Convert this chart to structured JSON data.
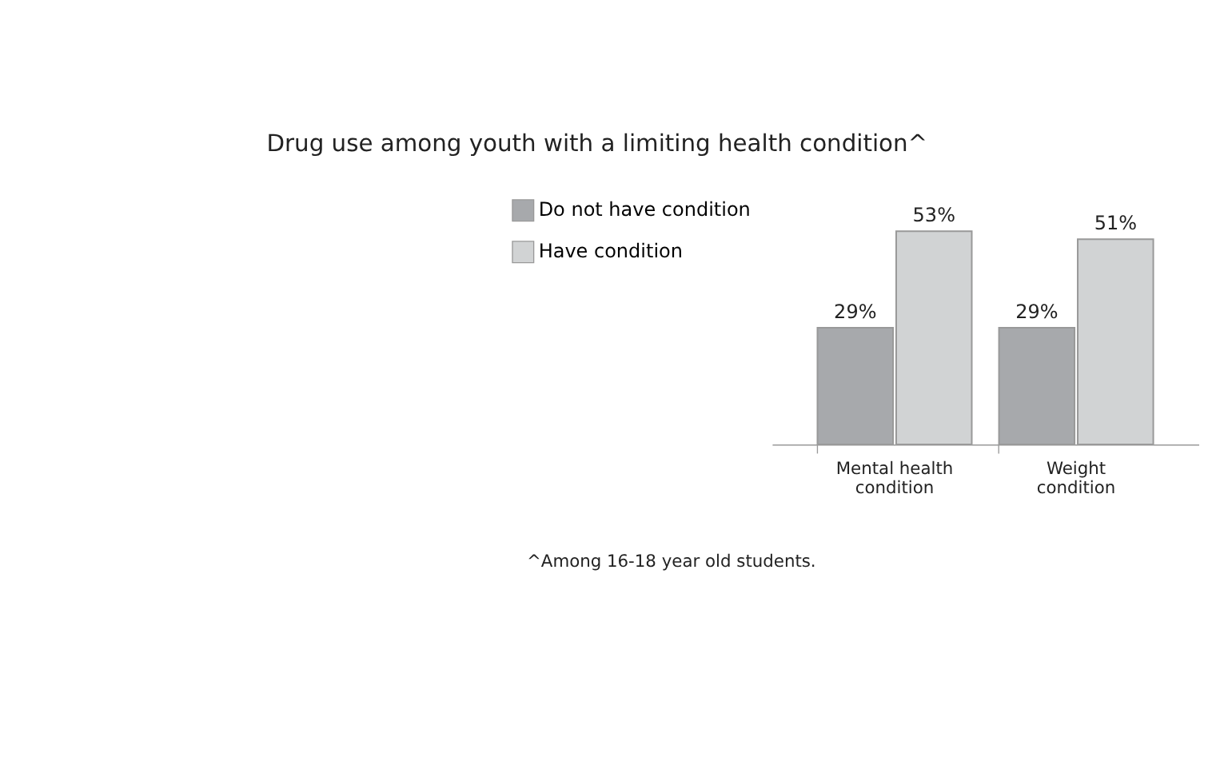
{
  "chart_data": {
    "type": "bar",
    "title": "Drug use among youth with a limiting health condition^",
    "categories": [
      "Mental health condition",
      "Weight condition"
    ],
    "series": [
      {
        "name": "Do not have condition",
        "color": "#a7a9ac",
        "values": [
          29,
          29
        ],
        "value_labels": [
          "29%",
          "29%"
        ]
      },
      {
        "name": "Have condition",
        "color": "#d1d3d4",
        "values": [
          53,
          51
        ],
        "value_labels": [
          "53%",
          "51%"
        ]
      }
    ],
    "legend": "top left",
    "grid": false,
    "tick_labels": "x",
    "annotations": [
      "^Among 16-18 year old students."
    ]
  }
}
